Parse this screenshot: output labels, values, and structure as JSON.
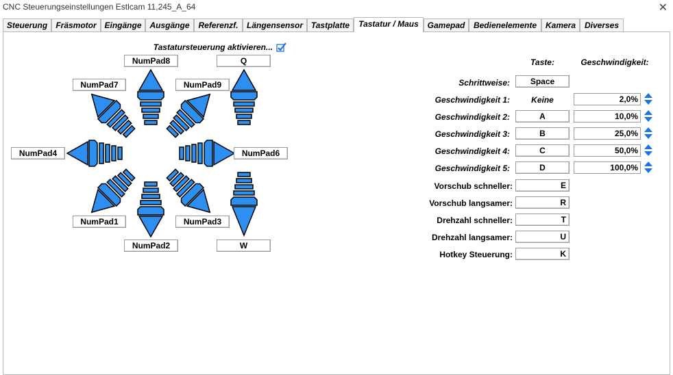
{
  "window": {
    "title": "CNC Steuerungseinstellungen Estlcam 11,245_A_64",
    "close_symbol": "✕"
  },
  "tabs": [
    "Steuerung",
    "Fräsmotor",
    "Eingänge",
    "Ausgänge",
    "Referenzf.",
    "Längensensor",
    "Tastplatte",
    "Tastatur / Maus",
    "Gamepad",
    "Bedienelemente",
    "Kamera",
    "Diverses"
  ],
  "active_tab": "Tastatur / Maus",
  "keyboard": {
    "enable_label": "Tastatursteuerung aktivieren...",
    "enabled": true,
    "numpad": {
      "n8": "NumPad8",
      "n7": "NumPad7",
      "n9": "NumPad9",
      "n4": "NumPad4",
      "n6": "NumPad6",
      "n1": "NumPad1",
      "n3": "NumPad3",
      "n2": "NumPad2"
    },
    "z_up": "Q",
    "z_down": "W"
  },
  "settings": {
    "col_key": "Taste:",
    "col_speed": "Geschwindigkeit:",
    "stepwise_label": "Schrittweise:",
    "stepwise_key": "Space",
    "speeds": [
      {
        "label": "Geschwindigkeit 1:",
        "key": "Keine",
        "value": "2,0%"
      },
      {
        "label": "Geschwindigkeit 2:",
        "key": "A",
        "value": "10,0%"
      },
      {
        "label": "Geschwindigkeit 3:",
        "key": "B",
        "value": "25,0%"
      },
      {
        "label": "Geschwindigkeit 4:",
        "key": "C",
        "value": "50,0%"
      },
      {
        "label": "Geschwindigkeit 5:",
        "key": "D",
        "value": "100,0%"
      }
    ],
    "hotkeys": [
      {
        "label": "Vorschub schneller:",
        "key": "E"
      },
      {
        "label": "Vorschub langsamer:",
        "key": "R"
      },
      {
        "label": "Drehzahl schneller:",
        "key": "T"
      },
      {
        "label": "Drehzahl langsamer:",
        "key": "U"
      },
      {
        "label": "Hotkey Steuerung:",
        "key": "K"
      }
    ]
  },
  "colors": {
    "arrow_fill": "#2d8ff0",
    "arrow_stroke": "#000000",
    "check": "#1a73e8"
  }
}
